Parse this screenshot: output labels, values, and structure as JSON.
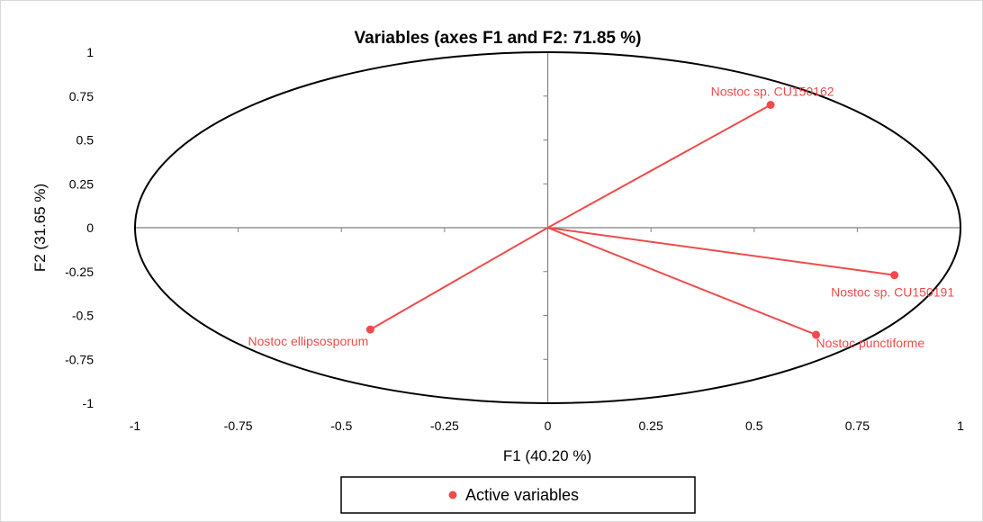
{
  "chart_data": {
    "type": "scatter",
    "title": "Variables (axes F1 and F2: 71.85 %)",
    "xlabel": "F1 (40.20 %)",
    "ylabel": "F2 (31.65 %)",
    "xlim": [
      -1,
      1
    ],
    "ylim": [
      -1,
      1
    ],
    "x_ticks": [
      "-1",
      "-0.75",
      "-0.5",
      "-0.25",
      "0",
      "0.25",
      "0.5",
      "0.75",
      "1"
    ],
    "y_ticks": [
      "1",
      "0.75",
      "0.5",
      "0.25",
      "0",
      "-0.25",
      "-0.5",
      "-0.75",
      "-1"
    ],
    "grid": false,
    "correlation_circle": true,
    "series": [
      {
        "name": "Active variables",
        "color": "#ef4b4b",
        "points": [
          {
            "label": "Nostoc sp. CU150162",
            "x": 0.54,
            "y": 0.7
          },
          {
            "label": "Nostoc sp. CU150191",
            "x": 0.84,
            "y": -0.27
          },
          {
            "label": "Nostoc punctiforme",
            "x": 0.65,
            "y": -0.61
          },
          {
            "label": "Nostoc ellipsosporum",
            "x": -0.43,
            "y": -0.58
          }
        ]
      }
    ],
    "legend": {
      "position": "bottom",
      "label": "Active variables"
    }
  }
}
